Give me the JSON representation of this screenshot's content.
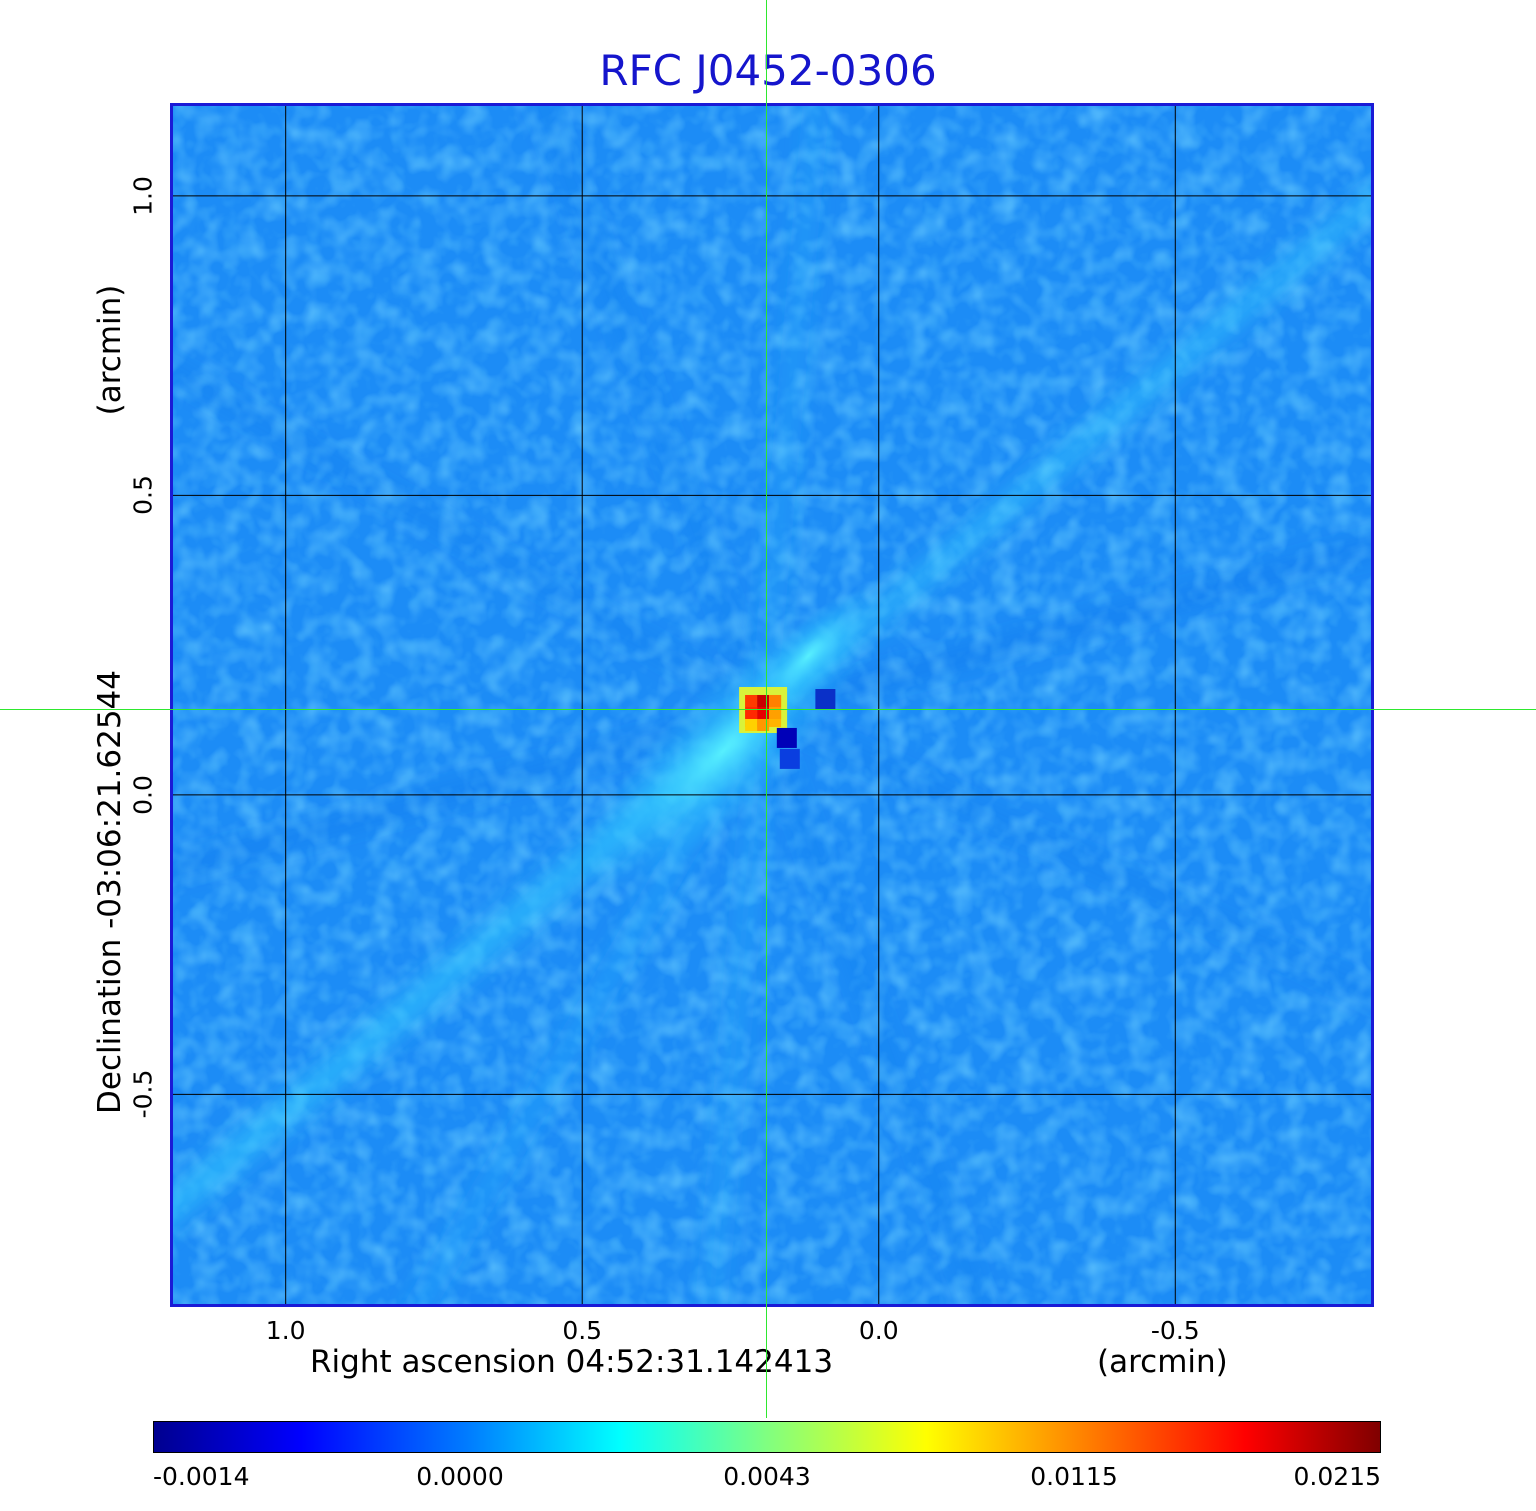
{
  "chart_data": {
    "type": "heatmap",
    "title": "RFC J0452-0306",
    "xlabel": "Right ascension  04:52:31.142413",
    "x_unit_label": "(arcmin)",
    "ylabel": "Declination  -03:06:21.62544",
    "y_unit_label": "(arcmin)",
    "xlim": [
      1.19,
      -0.83
    ],
    "ylim": [
      -0.85,
      1.15
    ],
    "x_ticks": [
      "1.0",
      "0.5",
      "0.0",
      "-0.5"
    ],
    "x_tick_values": [
      1.0,
      0.5,
      0.0,
      -0.5
    ],
    "y_ticks": [
      "1.0",
      "0.5",
      "0.0",
      "-0.5"
    ],
    "y_tick_values": [
      1.0,
      0.5,
      0.0,
      -0.5
    ],
    "grid": true,
    "crosshair": {
      "x": 0.195,
      "y": 0.14
    },
    "peak": {
      "x": 0.195,
      "y": 0.14,
      "value": 0.0215
    },
    "negative_spots": [
      {
        "x": 0.155,
        "y": 0.095,
        "value": -0.0014
      },
      {
        "x": 0.15,
        "y": 0.06,
        "value": -0.0012
      },
      {
        "x": 0.09,
        "y": 0.16,
        "value": -0.0011
      }
    ],
    "colorbar": {
      "colormap": "jet",
      "tick_labels": [
        "-0.0014",
        "0.0000",
        "0.0043",
        "0.0115",
        "0.0215"
      ],
      "min": -0.0014,
      "max": 0.0215
    },
    "colors": {
      "title": "#1515cc",
      "frame": "#1a1ad6",
      "crosshair": "#2ee82e",
      "grid": "#000000"
    }
  }
}
